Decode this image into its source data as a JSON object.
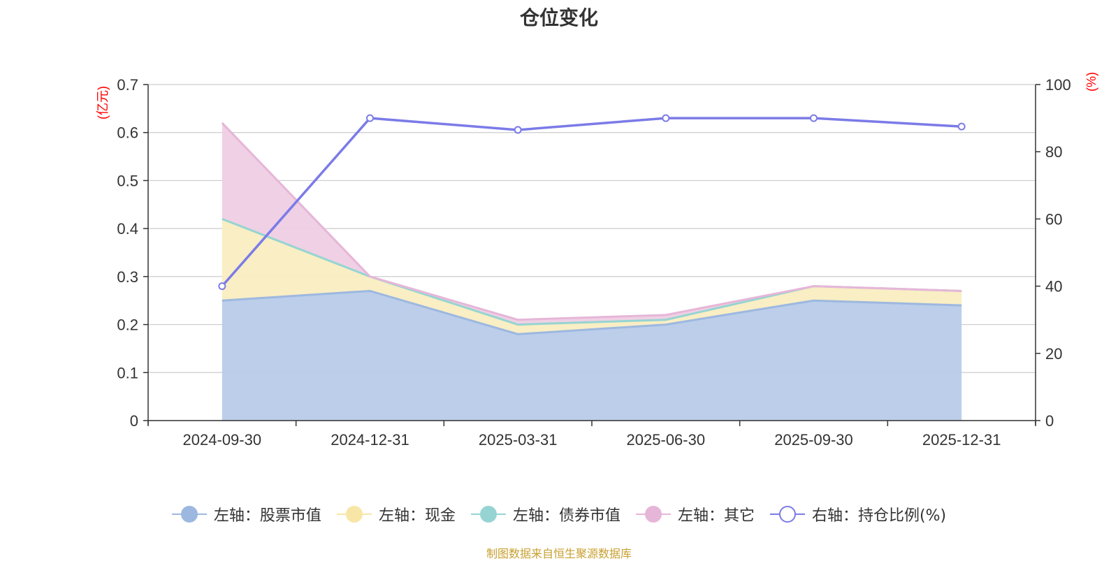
{
  "title": "仓位变化",
  "footer": {
    "text": "制图数据来自恒生聚源数据库",
    "color": "#c8a030"
  },
  "chart_data": {
    "type": "area",
    "categories": [
      "2024-09-30",
      "2024-12-31",
      "2025-03-31",
      "2025-06-30",
      "2025-09-30",
      "2025-12-31"
    ],
    "left_axis": {
      "unit_label": "(亿元)",
      "ylim": [
        0,
        0.7
      ],
      "ticks": [
        "0",
        "0.1",
        "0.2",
        "0.3",
        "0.4",
        "0.5",
        "0.6",
        "0.7"
      ],
      "unit_color": "#ff0000"
    },
    "right_axis": {
      "unit_label": "(%)",
      "ylim": [
        0,
        100
      ],
      "ticks": [
        "0",
        "20",
        "40",
        "60",
        "80",
        "100"
      ],
      "unit_color": "#ff0000"
    },
    "stacked": true,
    "series": [
      {
        "name": "左轴：股票市值",
        "axis": "left",
        "type": "area",
        "color": "#9db8e0",
        "fill": "#b8cbe9",
        "values": [
          0.25,
          0.27,
          0.18,
          0.2,
          0.25,
          0.24
        ]
      },
      {
        "name": "左轴：现金",
        "axis": "left",
        "type": "area",
        "color": "#f7e6a6",
        "fill": "#f9edc1",
        "values": [
          0.17,
          0.03,
          0.02,
          0.01,
          0.03,
          0.03
        ]
      },
      {
        "name": "左轴：债券市值",
        "axis": "left",
        "type": "area",
        "color": "#96d4d4",
        "fill": "#b8e2e2",
        "values": [
          0,
          0,
          0,
          0,
          0,
          0
        ]
      },
      {
        "name": "左轴：其它",
        "axis": "left",
        "type": "area",
        "color": "#e6b6d8",
        "fill": "#eecde3",
        "values": [
          0.2,
          0,
          0.01,
          0.01,
          0,
          0
        ]
      },
      {
        "name": "右轴：持仓比例(%)",
        "axis": "right",
        "type": "line",
        "color": "#7b7be8",
        "values": [
          40,
          90,
          86.5,
          90,
          90,
          87.5
        ]
      }
    ],
    "grid": true,
    "legend_position": "bottom"
  }
}
